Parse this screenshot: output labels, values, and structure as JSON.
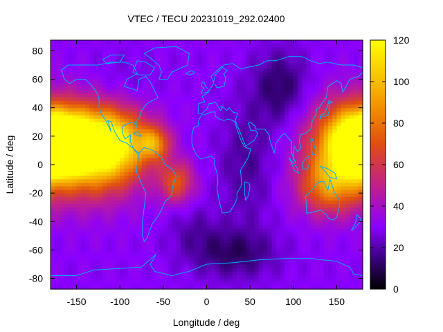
{
  "chart_data": {
    "type": "heatmap",
    "title": "VTEC / TECU 20231019_292.02400",
    "xlabel": "Longitude / deg",
    "ylabel": "Latitude / deg",
    "xlim": [
      -180,
      180
    ],
    "ylim": [
      -87.5,
      87.5
    ],
    "x_ticks": [
      -150,
      -100,
      -50,
      0,
      50,
      100,
      150
    ],
    "y_ticks": [
      -80,
      -60,
      -40,
      -20,
      0,
      20,
      40,
      60,
      80
    ],
    "colorbar": {
      "range": [
        0,
        120
      ],
      "ticks": [
        0,
        20,
        40,
        60,
        80,
        100,
        120
      ],
      "stops": [
        {
          "value": 0,
          "color": "#000000"
        },
        {
          "value": 15,
          "color": "#3a0080"
        },
        {
          "value": 30,
          "color": "#8a00ff"
        },
        {
          "value": 50,
          "color": "#c0208a"
        },
        {
          "value": 70,
          "color": "#e04e10"
        },
        {
          "value": 90,
          "color": "#f39a00"
        },
        {
          "value": 120,
          "color": "#ffff00"
        }
      ]
    },
    "background_level": 30,
    "features": [
      {
        "lon": -172,
        "lat": 15,
        "value": 105,
        "sx": 22,
        "sy": 14
      },
      {
        "lon": -135,
        "lat": 10,
        "value": 70,
        "sx": 38,
        "sy": 22
      },
      {
        "lon": -110,
        "lat": 15,
        "value": 60,
        "sx": 30,
        "sy": 16
      },
      {
        "lon": -60,
        "lat": 15,
        "value": 45,
        "sx": 12,
        "sy": 8
      },
      {
        "lon": -35,
        "lat": -12,
        "value": 40,
        "sx": 14,
        "sy": 10
      },
      {
        "lon": 160,
        "lat": 15,
        "value": 70,
        "sx": 30,
        "sy": 20
      },
      {
        "lon": 140,
        "lat": -15,
        "value": 45,
        "sx": 25,
        "sy": 14
      },
      {
        "lon": 85,
        "lat": 55,
        "value": -18,
        "sx": 22,
        "sy": 18
      },
      {
        "lon": 45,
        "lat": 0,
        "value": -12,
        "sx": 22,
        "sy": 30
      },
      {
        "lon": 30,
        "lat": -62,
        "value": -18,
        "sx": 35,
        "sy": 12
      },
      {
        "lon": -15,
        "lat": -45,
        "value": -8,
        "sx": 20,
        "sy": 12
      },
      {
        "lon": -100,
        "lat": 55,
        "value": -6,
        "sx": 30,
        "sy": 15
      }
    ]
  }
}
